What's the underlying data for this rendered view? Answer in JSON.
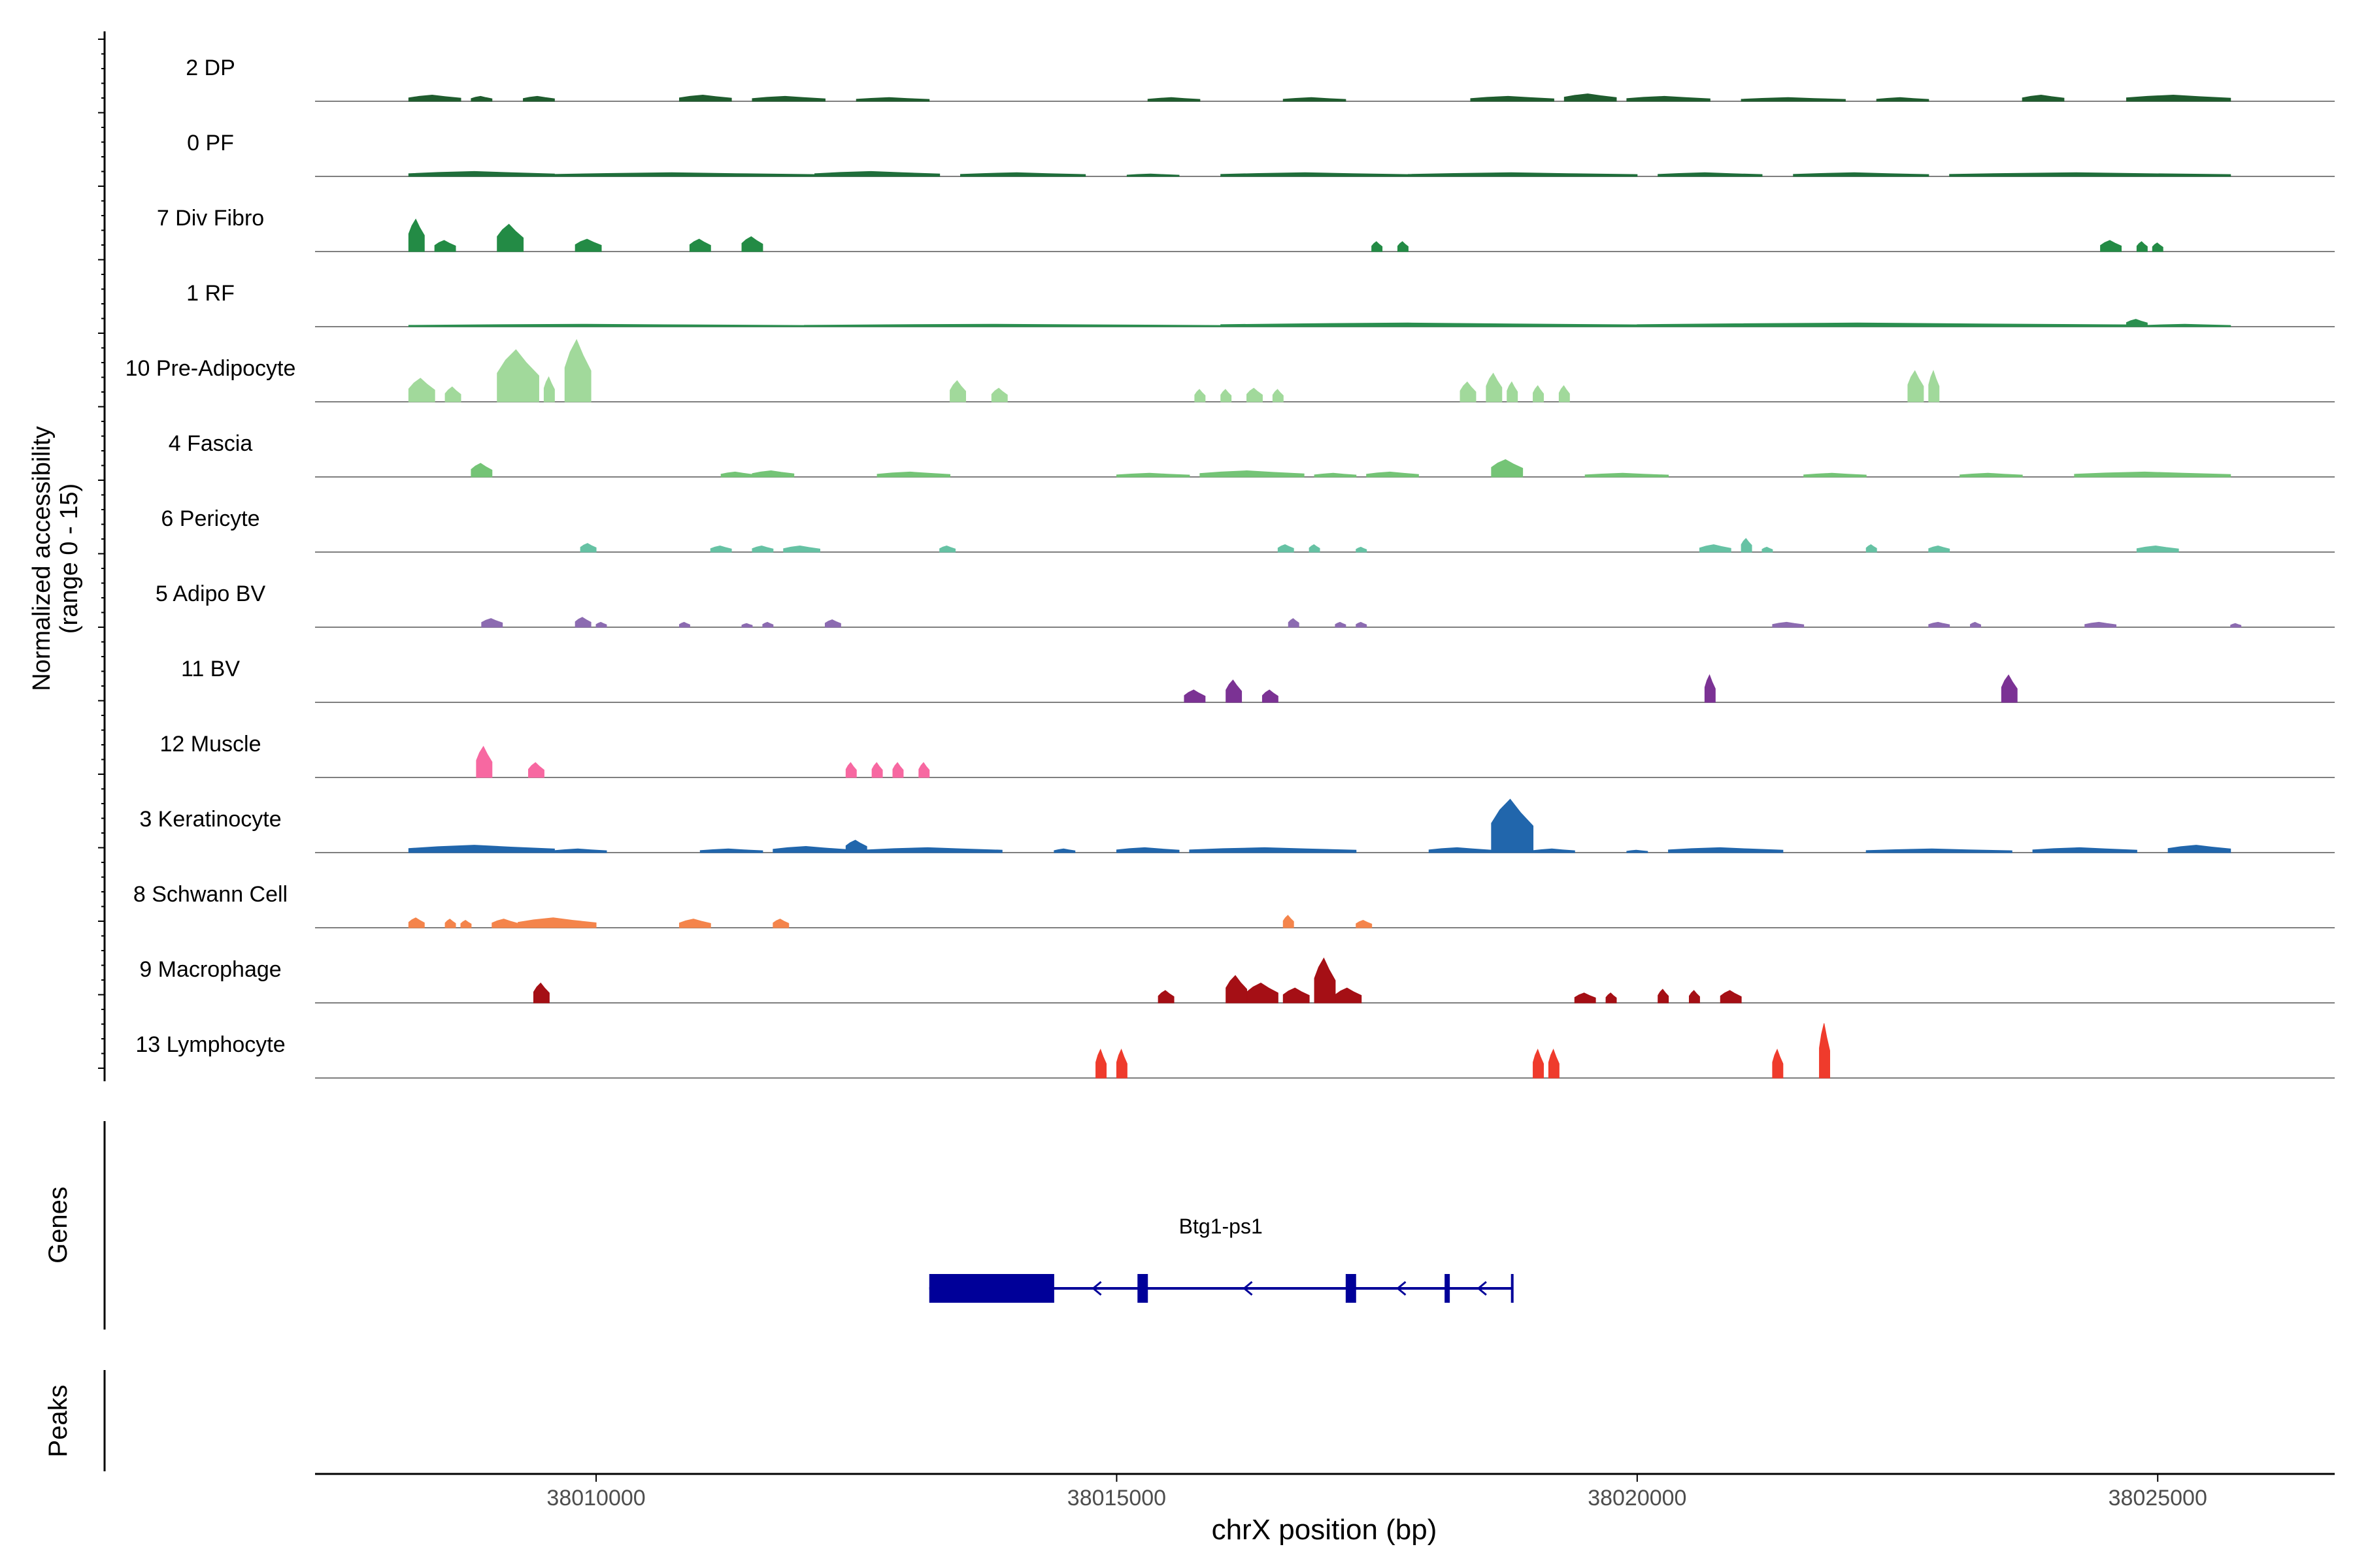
{
  "chart_data": {
    "type": "area",
    "tracks": [
      {
        "label": "2 DP",
        "color": "#1f5c2e",
        "peaks": [
          [
            38008200,
            38008700,
            0.5
          ],
          [
            38008800,
            38009000,
            0.4
          ],
          [
            38009300,
            38009600,
            0.4
          ],
          [
            38010800,
            38011300,
            0.5
          ],
          [
            38011500,
            38012200,
            0.4
          ],
          [
            38012500,
            38013200,
            0.3
          ],
          [
            38015300,
            38015800,
            0.3
          ],
          [
            38016600,
            38017200,
            0.3
          ],
          [
            38018400,
            38019200,
            0.4
          ],
          [
            38019300,
            38019800,
            0.6
          ],
          [
            38019900,
            38020700,
            0.4
          ],
          [
            38021000,
            38022000,
            0.3
          ],
          [
            38022300,
            38022800,
            0.3
          ],
          [
            38023700,
            38024100,
            0.5
          ],
          [
            38024700,
            38025700,
            0.5
          ]
        ]
      },
      {
        "label": "0 PF",
        "color": "#1f6e3a",
        "peaks": [
          [
            38008200,
            38009600,
            0.4
          ],
          [
            38009600,
            38012100,
            0.3
          ],
          [
            38012100,
            38013300,
            0.4
          ],
          [
            38013500,
            38014700,
            0.3
          ],
          [
            38015100,
            38015600,
            0.2
          ],
          [
            38016000,
            38017800,
            0.3
          ],
          [
            38017800,
            38020000,
            0.3
          ],
          [
            38020200,
            38021200,
            0.3
          ],
          [
            38021500,
            38022800,
            0.3
          ],
          [
            38023000,
            38025700,
            0.3
          ]
        ]
      },
      {
        "label": "7 Div Fibro",
        "color": "#238b45",
        "peaks": [
          [
            38008200,
            38008350,
            2.6
          ],
          [
            38008450,
            38008650,
            0.9
          ],
          [
            38009050,
            38009300,
            2.2
          ],
          [
            38009800,
            38010050,
            1.0
          ],
          [
            38010900,
            38011100,
            1.0
          ],
          [
            38011400,
            38011600,
            1.2
          ],
          [
            38017450,
            38017550,
            0.8
          ],
          [
            38017700,
            38017800,
            0.8
          ],
          [
            38024450,
            38024650,
            0.9
          ],
          [
            38024800,
            38024900,
            0.8
          ],
          [
            38024950,
            38025050,
            0.7
          ]
        ]
      },
      {
        "label": "1 RF",
        "color": "#2a8f4f",
        "peaks": [
          [
            38008200,
            38012000,
            0.2
          ],
          [
            38012000,
            38016000,
            0.2
          ],
          [
            38016000,
            38020000,
            0.3
          ],
          [
            38020000,
            38024700,
            0.3
          ],
          [
            38024700,
            38024900,
            0.6
          ],
          [
            38024900,
            38025700,
            0.2
          ]
        ]
      },
      {
        "label": "10 Pre-Adipocyte",
        "color": "#a1d99b",
        "peaks": [
          [
            38008200,
            38008450,
            1.9
          ],
          [
            38008550,
            38008700,
            1.2
          ],
          [
            38009050,
            38009450,
            4.2
          ],
          [
            38009500,
            38009600,
            2.0
          ],
          [
            38009700,
            38009950,
            5.1
          ],
          [
            38013400,
            38013550,
            1.7
          ],
          [
            38013800,
            38013950,
            1.1
          ],
          [
            38015750,
            38015850,
            1.0
          ],
          [
            38016000,
            38016100,
            1.0
          ],
          [
            38016250,
            38016400,
            1.1
          ],
          [
            38016500,
            38016600,
            1.0
          ],
          [
            38018300,
            38018450,
            1.6
          ],
          [
            38018550,
            38018700,
            2.3
          ],
          [
            38018750,
            38018850,
            1.6
          ],
          [
            38019000,
            38019100,
            1.3
          ],
          [
            38019250,
            38019350,
            1.3
          ],
          [
            38022600,
            38022750,
            2.5
          ],
          [
            38022800,
            38022900,
            2.5
          ]
        ]
      },
      {
        "label": "4 Fascia",
        "color": "#74c476",
        "peaks": [
          [
            38008800,
            38009000,
            1.1
          ],
          [
            38011200,
            38011500,
            0.4
          ],
          [
            38011500,
            38011900,
            0.5
          ],
          [
            38012700,
            38013400,
            0.4
          ],
          [
            38015000,
            38015700,
            0.3
          ],
          [
            38015800,
            38016800,
            0.5
          ],
          [
            38016900,
            38017300,
            0.3
          ],
          [
            38017400,
            38017900,
            0.4
          ],
          [
            38018600,
            38018900,
            1.4
          ],
          [
            38019500,
            38020300,
            0.3
          ],
          [
            38021600,
            38022200,
            0.3
          ],
          [
            38023100,
            38023700,
            0.3
          ],
          [
            38024200,
            38025700,
            0.4
          ]
        ]
      },
      {
        "label": "6 Pericyte",
        "color": "#66c2a4",
        "peaks": [
          [
            38009850,
            38010000,
            0.7
          ],
          [
            38011100,
            38011300,
            0.5
          ],
          [
            38011500,
            38011700,
            0.5
          ],
          [
            38011800,
            38012150,
            0.5
          ],
          [
            38013300,
            38013450,
            0.5
          ],
          [
            38016550,
            38016700,
            0.6
          ],
          [
            38016850,
            38016950,
            0.6
          ],
          [
            38017300,
            38017400,
            0.4
          ],
          [
            38020600,
            38020900,
            0.6
          ],
          [
            38021000,
            38021100,
            1.1
          ],
          [
            38021200,
            38021300,
            0.4
          ],
          [
            38022200,
            38022300,
            0.6
          ],
          [
            38022800,
            38023000,
            0.5
          ],
          [
            38024800,
            38025200,
            0.5
          ]
        ]
      },
      {
        "label": "5 Adipo BV",
        "color": "#8c6bb1",
        "peaks": [
          [
            38008900,
            38009100,
            0.7
          ],
          [
            38009800,
            38009950,
            0.8
          ],
          [
            38010000,
            38010100,
            0.4
          ],
          [
            38010800,
            38010900,
            0.4
          ],
          [
            38011400,
            38011500,
            0.3
          ],
          [
            38011600,
            38011700,
            0.4
          ],
          [
            38012200,
            38012350,
            0.6
          ],
          [
            38016650,
            38016750,
            0.7
          ],
          [
            38017100,
            38017200,
            0.4
          ],
          [
            38017300,
            38017400,
            0.4
          ],
          [
            38021300,
            38021600,
            0.4
          ],
          [
            38022800,
            38023000,
            0.4
          ],
          [
            38023200,
            38023300,
            0.4
          ],
          [
            38024300,
            38024600,
            0.4
          ],
          [
            38025700,
            38025800,
            0.3
          ]
        ]
      },
      {
        "label": "11 BV",
        "color": "#7b3294",
        "peaks": [
          [
            38015650,
            38015850,
            1.0
          ],
          [
            38016050,
            38016200,
            1.8
          ],
          [
            38016400,
            38016550,
            1.0
          ],
          [
            38020650,
            38020750,
            2.2
          ],
          [
            38023500,
            38023650,
            2.2
          ]
        ]
      },
      {
        "label": "12 Muscle",
        "color": "#f768a1",
        "peaks": [
          [
            38008850,
            38009000,
            2.5
          ],
          [
            38009350,
            38009500,
            1.2
          ],
          [
            38012400,
            38012500,
            1.2
          ],
          [
            38012650,
            38012750,
            1.2
          ],
          [
            38012850,
            38012950,
            1.2
          ],
          [
            38013100,
            38013200,
            1.2
          ]
        ]
      },
      {
        "label": "3 Keratinocyte",
        "color": "#2166ac",
        "peaks": [
          [
            38008200,
            38009600,
            0.6
          ],
          [
            38009600,
            38010100,
            0.3
          ],
          [
            38011000,
            38011600,
            0.3
          ],
          [
            38011700,
            38012400,
            0.5
          ],
          [
            38012400,
            38012600,
            1.0
          ],
          [
            38012600,
            38013900,
            0.4
          ],
          [
            38014400,
            38014600,
            0.3
          ],
          [
            38015000,
            38015600,
            0.4
          ],
          [
            38015700,
            38017300,
            0.4
          ],
          [
            38018000,
            38018600,
            0.4
          ],
          [
            38018600,
            38019000,
            4.3
          ],
          [
            38019000,
            38019400,
            0.3
          ],
          [
            38019900,
            38020100,
            0.2
          ],
          [
            38020300,
            38021400,
            0.4
          ],
          [
            38022200,
            38023600,
            0.3
          ],
          [
            38023800,
            38024800,
            0.4
          ],
          [
            38025100,
            38025700,
            0.6
          ]
        ]
      },
      {
        "label": "8 Schwann Cell",
        "color": "#f4844b",
        "peaks": [
          [
            38008200,
            38008350,
            0.8
          ],
          [
            38008550,
            38008650,
            0.7
          ],
          [
            38008700,
            38008800,
            0.6
          ],
          [
            38009000,
            38009250,
            0.7
          ],
          [
            38009250,
            38010000,
            0.8
          ],
          [
            38010800,
            38011100,
            0.7
          ],
          [
            38011700,
            38011850,
            0.7
          ],
          [
            38016600,
            38016700,
            1.0
          ],
          [
            38017300,
            38017450,
            0.6
          ]
        ]
      },
      {
        "label": "9 Macrophage",
        "color": "#a50f15",
        "peaks": [
          [
            38009400,
            38009550,
            1.6
          ],
          [
            38015400,
            38015550,
            1.0
          ],
          [
            38016050,
            38016250,
            2.2
          ],
          [
            38016250,
            38016550,
            1.6
          ],
          [
            38016600,
            38016850,
            1.2
          ],
          [
            38016900,
            38017100,
            3.6
          ],
          [
            38017100,
            38017350,
            1.2
          ],
          [
            38019400,
            38019600,
            0.8
          ],
          [
            38019700,
            38019800,
            0.8
          ],
          [
            38020200,
            38020300,
            1.1
          ],
          [
            38020500,
            38020600,
            1.0
          ],
          [
            38020800,
            38021000,
            1.0
          ]
        ]
      },
      {
        "label": "13 Lymphocyte",
        "color": "#ef3b2c",
        "peaks": [
          [
            38014800,
            38014900,
            2.3
          ],
          [
            38015000,
            38015100,
            2.3
          ],
          [
            38019000,
            38019100,
            2.3
          ],
          [
            38019150,
            38019250,
            2.3
          ],
          [
            38021300,
            38021400,
            2.3
          ],
          [
            38021750,
            38021850,
            4.4
          ]
        ]
      }
    ],
    "y_range": [
      0,
      15
    ],
    "xlim": [
      38007300,
      38026700
    ],
    "x_ticks": [
      38010000,
      38015000,
      38020000,
      38025000
    ],
    "gene": {
      "name": "Btg1-ps1",
      "color": "#000099",
      "start": 38013200,
      "end": 38018800,
      "strand": "-",
      "exons": [
        [
          38013200,
          38014400
        ],
        [
          38015200,
          38015300
        ],
        [
          38017200,
          38017300
        ],
        [
          38018150,
          38018200
        ]
      ]
    },
    "peaks_track": []
  },
  "ylabel_line1": "Normalized accessibility",
  "ylabel_line2": "(range 0 - 15)",
  "genes_label": "Genes",
  "peaks_label": "Peaks",
  "xlabel": "chrX position (bp)"
}
